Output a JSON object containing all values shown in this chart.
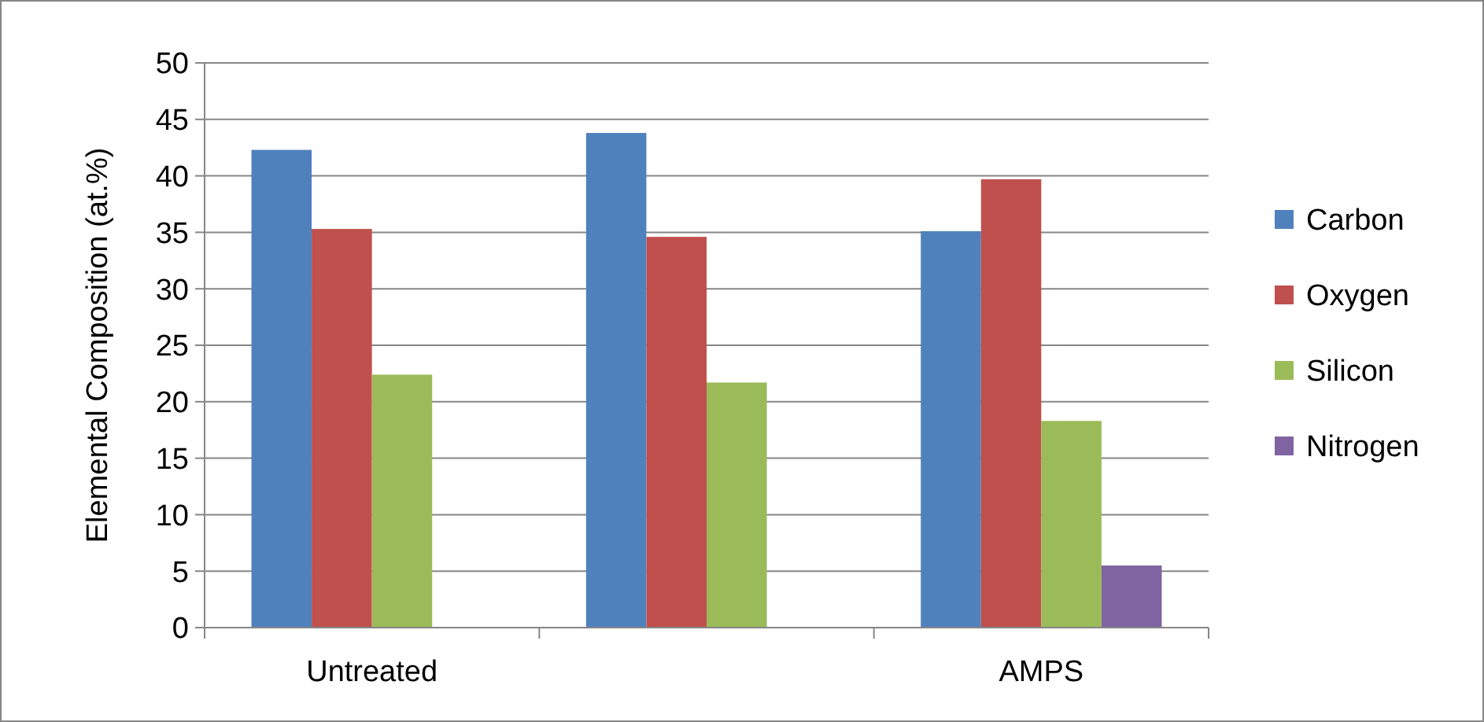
{
  "chart_data": {
    "type": "bar",
    "ylabel": "Elemental Composition (at.%)",
    "categories": [
      "Untreated",
      null,
      "AMPS"
    ],
    "series": [
      {
        "name": "Carbon",
        "color": "#4f81bd",
        "values": [
          42.3,
          43.8,
          35.1
        ]
      },
      {
        "name": "Oxygen",
        "color": "#c0504d",
        "values": [
          35.3,
          34.6,
          39.7
        ]
      },
      {
        "name": "Silicon",
        "color": "#9bbb59",
        "values": [
          22.4,
          21.7,
          18.3
        ]
      },
      {
        "name": "Nitrogen",
        "color": "#8064a2",
        "values": [
          null,
          null,
          5.5
        ]
      }
    ],
    "ylim": [
      0,
      50
    ],
    "yticks": [
      0,
      5,
      10,
      15,
      20,
      25,
      30,
      35,
      40,
      45,
      50
    ],
    "grid": "y",
    "legend": "right"
  }
}
